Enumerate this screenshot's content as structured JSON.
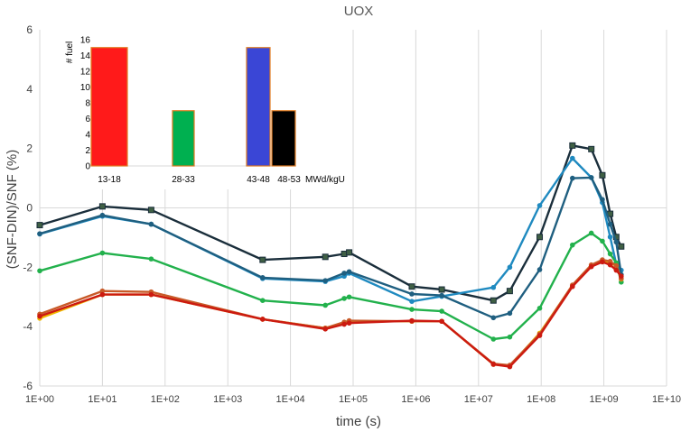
{
  "chart_data": [
    {
      "type": "line",
      "title": "UOX",
      "xlabel": "time (s)",
      "ylabel": "(SNF-DIN)/SNF (%)",
      "x_scale": "log",
      "xlim": [
        1,
        10000000000
      ],
      "ylim": [
        -6,
        6
      ],
      "x_ticks": [
        "1E+00",
        "1E+01",
        "1E+02",
        "1E+03",
        "1E+04",
        "1E+05",
        "1E+06",
        "1E+07",
        "1E+08",
        "1E+09",
        "1E+10"
      ],
      "y_ticks": [
        "-6",
        "-4",
        "-2",
        "0",
        "2",
        "4",
        "6"
      ],
      "grid": "vertical",
      "x": [
        1,
        10,
        60,
        3600,
        36000,
        72000,
        86400,
        864000,
        2592000,
        17280000,
        31536000,
        94608000,
        315360000,
        630720000,
        946080000,
        1261440000,
        1576800000,
        1892160000
      ],
      "series": [
        {
          "color": "#1a2e3b",
          "marker": "square",
          "values": [
            -0.58,
            0.05,
            -0.07,
            -1.75,
            -1.65,
            -1.55,
            -1.5,
            -2.65,
            -2.75,
            -3.12,
            -2.8,
            -0.98,
            2.1,
            1.98,
            1.1,
            -0.2,
            -0.98,
            -1.3
          ]
        },
        {
          "color": "#1f8ac0",
          "marker": "circle",
          "values": [
            -0.88,
            -0.28,
            -0.55,
            -2.38,
            -2.48,
            -2.3,
            -2.2,
            -3.15,
            -2.98,
            -2.68,
            -2.0,
            0.08,
            1.67,
            1.02,
            0.18,
            -0.98,
            -1.9,
            -2.1
          ]
        },
        {
          "color": "#1f5f80",
          "marker": "circle",
          "values": [
            -0.87,
            -0.25,
            -0.55,
            -2.35,
            -2.45,
            -2.2,
            -2.15,
            -2.9,
            -2.95,
            -3.7,
            -3.55,
            -2.08,
            1.0,
            1.02,
            0.28,
            -0.55,
            -1.15,
            -2.25
          ]
        },
        {
          "color": "#22b14c",
          "marker": "circle",
          "values": [
            -2.12,
            -1.52,
            -1.72,
            -3.12,
            -3.28,
            -3.05,
            -3.0,
            -3.42,
            -3.48,
            -4.42,
            -4.35,
            -3.38,
            -1.25,
            -0.85,
            -1.12,
            -1.55,
            -1.85,
            -2.5
          ]
        },
        {
          "color": "#f0b800",
          "marker": "circle",
          "values": [
            -3.72,
            -2.92,
            -2.92,
            -3.75,
            -4.05,
            -3.88,
            -3.82,
            -3.82,
            -3.82,
            -5.27,
            -5.33,
            -4.22,
            -2.62,
            -1.95,
            -1.78,
            -1.85,
            -1.95,
            -2.4
          ]
        },
        {
          "color": "#c85a28",
          "marker": "circle",
          "values": [
            -3.58,
            -2.8,
            -2.83,
            -3.75,
            -4.05,
            -3.85,
            -3.8,
            -3.82,
            -3.82,
            -5.25,
            -5.3,
            -4.25,
            -2.6,
            -1.92,
            -1.75,
            -1.8,
            -1.95,
            -2.38
          ]
        },
        {
          "color": "#cc1a10",
          "marker": "circle",
          "values": [
            -3.65,
            -2.92,
            -2.92,
            -3.75,
            -4.08,
            -3.92,
            -3.88,
            -3.8,
            -3.82,
            -5.27,
            -5.35,
            -4.3,
            -2.65,
            -1.98,
            -1.82,
            -1.92,
            -2.1,
            -2.3
          ]
        }
      ]
    },
    {
      "type": "bar",
      "ylabel": "# fuel",
      "ylim": [
        0,
        16
      ],
      "y_ticks": [
        "0",
        "2",
        "4",
        "6",
        "8",
        "10",
        "12",
        "14",
        "16"
      ],
      "categories": [
        "13-18",
        "28-33",
        "43-48",
        "48-53"
      ],
      "unit_label": "MWd/kgU",
      "values": [
        15,
        7,
        15,
        7
      ],
      "colors": [
        "#ff1a1a",
        "#00b050",
        "#3a46d6",
        "#000000"
      ],
      "edge_color": "#e07a20"
    }
  ]
}
